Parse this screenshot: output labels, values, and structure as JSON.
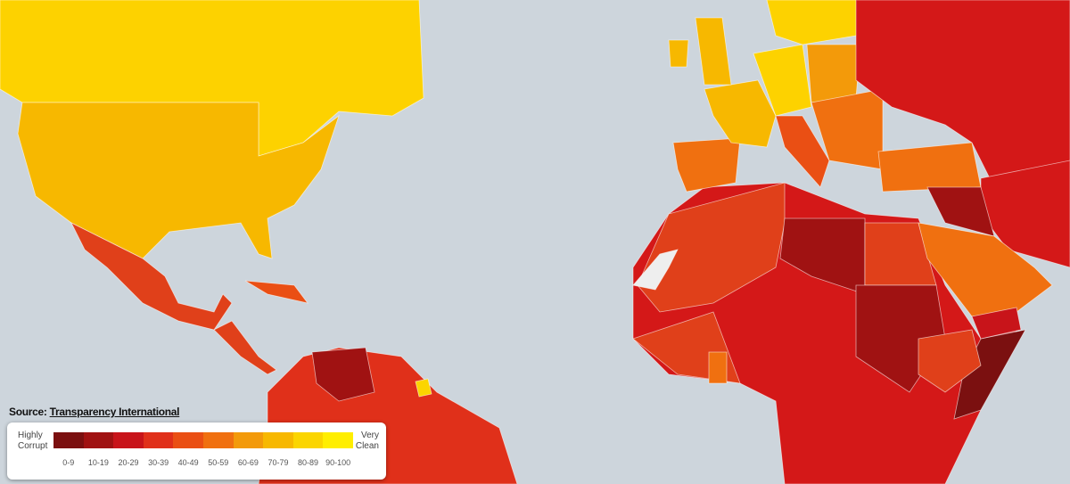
{
  "source": {
    "label": "Source:",
    "link": "Transparency International"
  },
  "legend": {
    "low_label": "Highly Corrupt",
    "high_label": "Very Clean",
    "ranges": [
      {
        "label": "0-9",
        "color": "#7b1010"
      },
      {
        "label": "10-19",
        "color": "#a01212"
      },
      {
        "label": "20-29",
        "color": "#c8141a"
      },
      {
        "label": "30-39",
        "color": "#e0301a"
      },
      {
        "label": "40-49",
        "color": "#ea4f14"
      },
      {
        "label": "50-59",
        "color": "#f07010"
      },
      {
        "label": "60-69",
        "color": "#f39a0a"
      },
      {
        "label": "70-79",
        "color": "#f7b800"
      },
      {
        "label": "80-89",
        "color": "#fbd500"
      },
      {
        "label": "90-100",
        "color": "#ffee00"
      }
    ]
  }
}
